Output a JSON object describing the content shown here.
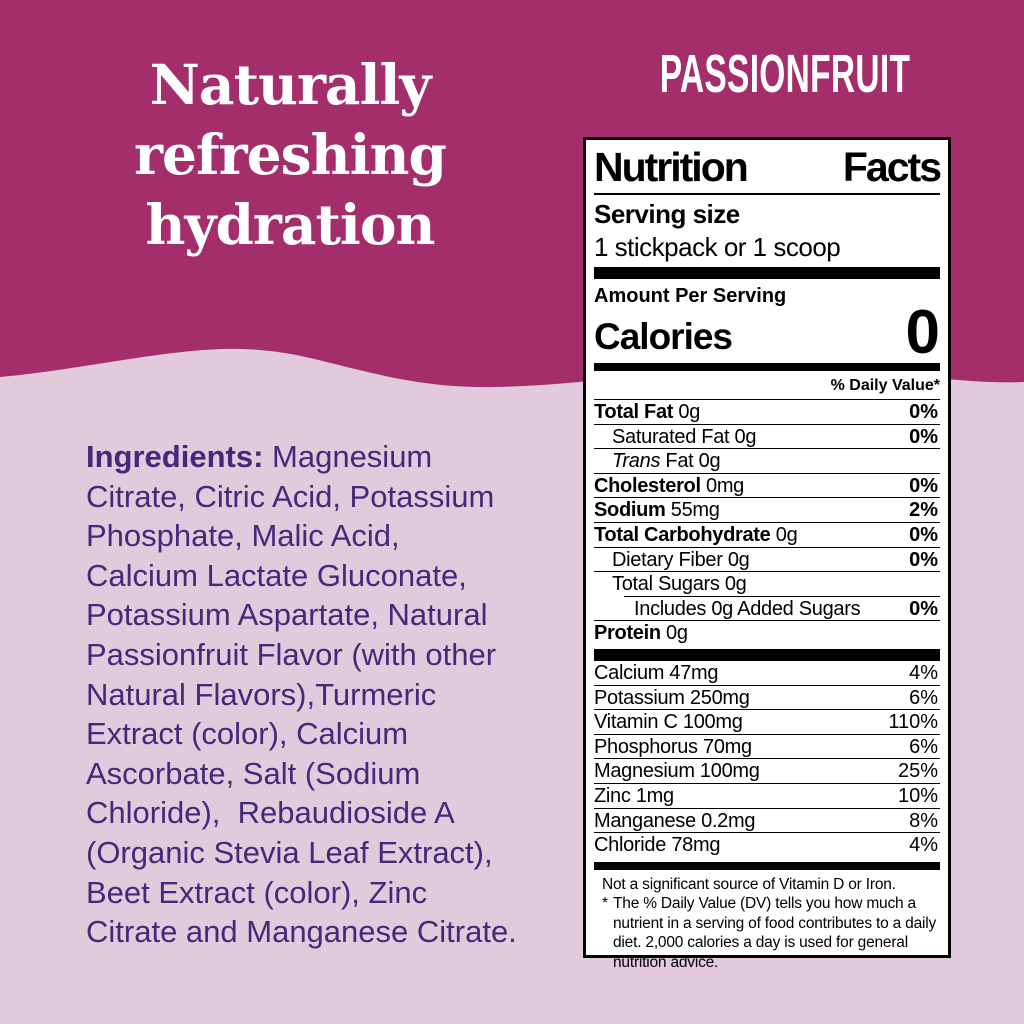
{
  "colors": {
    "background_top": "#A42E6C",
    "background_bottom": "#E3C9DC",
    "headline_text": "#FFFFFF",
    "flavor_text": "#FFFFFF",
    "ingredients_text": "#43297A",
    "panel_background": "#FFFFFF",
    "panel_text": "#000000"
  },
  "header": {
    "headline_lines": [
      "Naturally",
      "refreshing",
      "hydration"
    ],
    "flavor": "PASSIONFRUIT"
  },
  "ingredients": {
    "label": "Ingredients:",
    "lines": [
      "Magnesium",
      "Citrate, Citric Acid, Potassium",
      "Phosphate, Malic Acid,",
      "Calcium Lactate Gluconate,",
      "Potassium Aspartate, Natural",
      "Passionfruit Flavor (with other",
      "Natural Flavors),Turmeric",
      "Extract (color), Calcium",
      "Ascorbate, Salt (Sodium",
      "Chloride),  Rebaudioside A",
      "(Organic Stevia Leaf Extract),",
      "Beet Extract (color), Zinc",
      "Citrate and Manganese Citrate."
    ]
  },
  "nutrition_facts": {
    "title": "Nutrition Facts",
    "serving_size_label": "Serving size",
    "serving_size_value": "1 stickpack or 1 scoop",
    "amount_per_serving_label": "Amount Per Serving",
    "calories_label": "Calories",
    "calories_value": "0",
    "daily_value_header": "% Daily Value*",
    "main_rows": [
      {
        "bold_part": "Total Fat",
        "rest": "0g",
        "dv": "0%",
        "dv_bold": true,
        "indent": 0
      },
      {
        "rest": "Saturated Fat 0g",
        "dv": "0%",
        "dv_bold": true,
        "indent": 1
      },
      {
        "italic_part": "Trans",
        "rest": "Fat 0g",
        "dv": "",
        "indent": 1
      },
      {
        "bold_part": "Cholesterol",
        "rest": "0mg",
        "dv": "0%",
        "dv_bold": true,
        "indent": 0
      },
      {
        "bold_part": "Sodium",
        "rest": "55mg",
        "dv": "2%",
        "dv_bold": true,
        "indent": 0
      },
      {
        "bold_part": "Total Carbohydrate",
        "rest": "0g",
        "dv": "0%",
        "dv_bold": true,
        "indent": 0
      },
      {
        "rest": "Dietary Fiber 0g",
        "dv": "0%",
        "dv_bold": true,
        "indent": 1
      },
      {
        "rest": "Total Sugars 0g",
        "dv": "",
        "indent": 1
      },
      {
        "rest": "Includes 0g Added Sugars",
        "dv": "0%",
        "dv_bold": true,
        "indent": 2,
        "inset": true
      },
      {
        "bold_part": "Protein",
        "rest": "0g",
        "dv": "",
        "indent": 0
      }
    ],
    "mineral_rows": [
      {
        "rest": "Calcium 47mg",
        "dv": "4%"
      },
      {
        "rest": "Potassium 250mg",
        "dv": "6%"
      },
      {
        "rest": "Vitamin C 100mg",
        "dv": "110%"
      },
      {
        "rest": "Phosphorus 70mg",
        "dv": "6%"
      },
      {
        "rest": "Magnesium 100mg",
        "dv": "25%"
      },
      {
        "rest": "Zinc 1mg",
        "dv": "10%"
      },
      {
        "rest": "Manganese 0.2mg",
        "dv": "8%"
      },
      {
        "rest": "Chloride 78mg",
        "dv": "4%"
      }
    ],
    "footnote_note": "Not a significant source of Vitamin D or Iron.",
    "footnote_star_symbol": "*",
    "footnote_star_text": "The % Daily Value (DV) tells you how much a nutrient in a serving of food contributes to a daily diet. 2,000 calories a day is used for general nutrition advice."
  }
}
